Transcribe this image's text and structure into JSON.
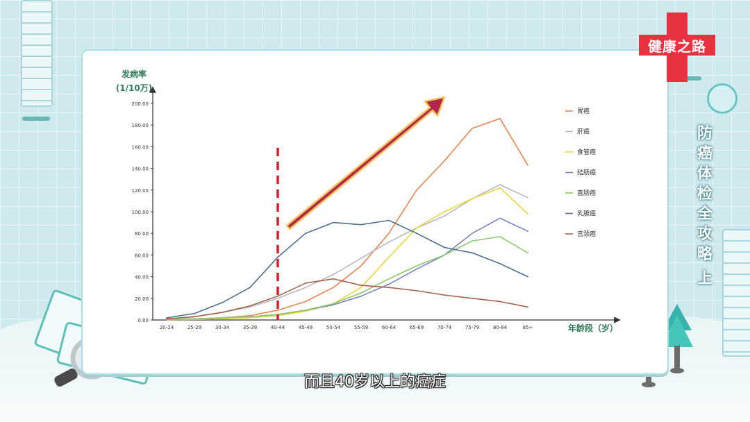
{
  "logo": {
    "text": "健康之路"
  },
  "side_title": {
    "chars": [
      "防",
      "癌",
      "体",
      "检",
      "全",
      "攻",
      "略",
      "上"
    ]
  },
  "subtitle": "而且40岁以上的癌症",
  "colors": {
    "axis": "#333333",
    "label_green": "#2e7d5a",
    "marker": "#d91f26",
    "arrow_fill": "#b3264b",
    "arrow_edge": "#f4c25a"
  },
  "chart_data": {
    "type": "line",
    "ylabel_line1": "发病率",
    "ylabel_line2": "(1/10万)",
    "xlabel": "年龄段（岁）",
    "ylim": [
      0,
      200
    ],
    "yticks": [
      "0.00",
      "20.00",
      "40.00",
      "60.00",
      "80.00",
      "100.00",
      "120.00",
      "140.00",
      "160.00",
      "180.00",
      "200.00"
    ],
    "categories": [
      "20-24",
      "25-29",
      "30-34",
      "35-39",
      "40-44",
      "45-49",
      "50-54",
      "55-59",
      "60-64",
      "65-69",
      "70-74",
      "75-79",
      "80-84",
      "85+"
    ],
    "marker_category": "40-44",
    "legend_position": "right",
    "series": [
      {
        "name": "胃癌",
        "color": "#e8854f",
        "values": [
          0.5,
          1,
          2,
          4,
          9,
          17,
          30,
          50,
          80,
          120,
          147,
          177,
          186,
          143
        ]
      },
      {
        "name": "肝癌",
        "color": "#b8b8c8",
        "values": [
          1,
          3,
          7,
          12,
          20,
          30,
          42,
          57,
          72,
          85,
          96,
          112,
          125,
          113
        ]
      },
      {
        "name": "食管癌",
        "color": "#ecd63a",
        "values": [
          0.3,
          0.5,
          1,
          2,
          4,
          8,
          15,
          30,
          58,
          85,
          100,
          112,
          122,
          98
        ]
      },
      {
        "name": "结肠癌",
        "color": "#7b82c6",
        "values": [
          0.5,
          1,
          2,
          3,
          5,
          9,
          14,
          22,
          33,
          47,
          60,
          80,
          94,
          82
        ]
      },
      {
        "name": "直肠癌",
        "color": "#8cc96a",
        "values": [
          0.5,
          1,
          2,
          3,
          5,
          9,
          15,
          25,
          38,
          50,
          60,
          73,
          77,
          62
        ]
      },
      {
        "name": "乳腺癌",
        "color": "#4e6f8f",
        "values": [
          2,
          6,
          16,
          30,
          58,
          80,
          90,
          88,
          92,
          80,
          67,
          62,
          52,
          40
        ]
      },
      {
        "name": "宫颈癌",
        "color": "#a5624a",
        "values": [
          1,
          3,
          7,
          13,
          22,
          34,
          38,
          32,
          30,
          27,
          23,
          20,
          17,
          12
        ]
      }
    ]
  }
}
